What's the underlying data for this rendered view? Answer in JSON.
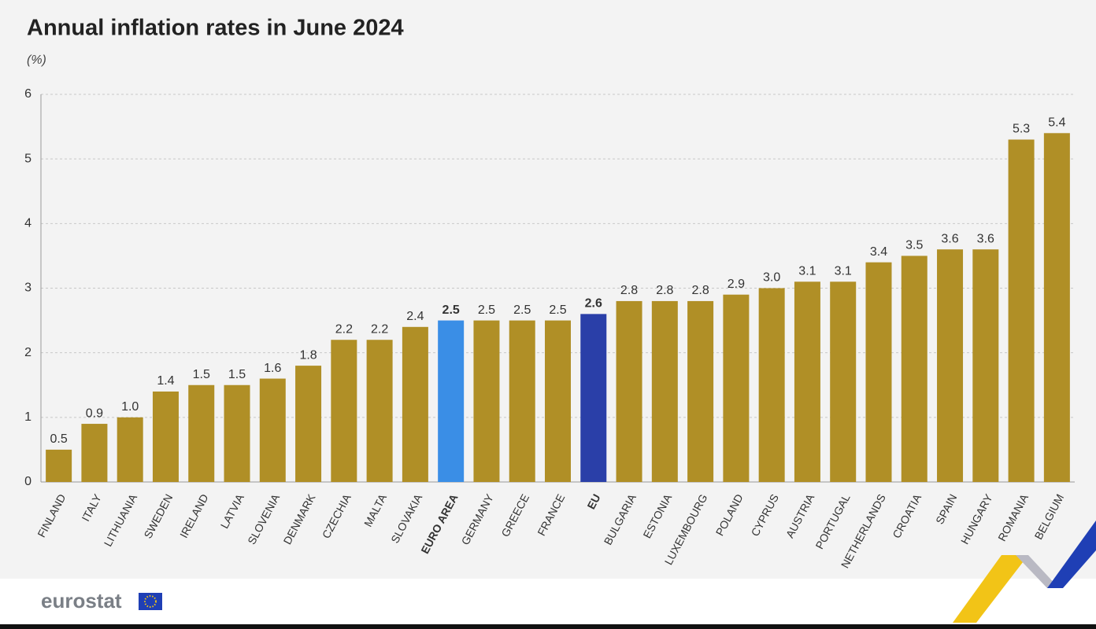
{
  "chart_data": {
    "type": "bar",
    "title": "Annual inflation rates in June 2024",
    "subtitle": "(%)",
    "categories": [
      "FINLAND",
      "ITALY",
      "LITHUANIA",
      "SWEDEN",
      "IRELAND",
      "LATVIA",
      "SLOVENIA",
      "DENMARK",
      "CZECHIA",
      "MALTA",
      "SLOVAKIA",
      "EURO AREA",
      "GERMANY",
      "GREECE",
      "FRANCE",
      "EU",
      "BULGARIA",
      "ESTONIA",
      "LUXEMBOURG",
      "POLAND",
      "CYPRUS",
      "AUSTRIA",
      "PORTUGAL",
      "NETHERLANDS",
      "CROATIA",
      "SPAIN",
      "HUNGARY",
      "ROMANIA",
      "BELGIUM"
    ],
    "values": [
      0.5,
      0.9,
      1.0,
      1.4,
      1.5,
      1.5,
      1.6,
      1.8,
      2.2,
      2.2,
      2.4,
      2.5,
      2.5,
      2.5,
      2.5,
      2.6,
      2.8,
      2.8,
      2.8,
      2.9,
      3.0,
      3.1,
      3.1,
      3.4,
      3.5,
      3.6,
      3.6,
      5.3,
      5.4
    ],
    "value_labels": [
      "0.5",
      "0.9",
      "1.0",
      "1.4",
      "1.5",
      "1.5",
      "1.6",
      "1.8",
      "2.2",
      "2.2",
      "2.4",
      "2.5",
      "2.5",
      "2.5",
      "2.5",
      "2.6",
      "2.8",
      "2.8",
      "2.8",
      "2.9",
      "3.0",
      "3.1",
      "3.1",
      "3.4",
      "3.5",
      "3.6",
      "3.6",
      "5.3",
      "5.4"
    ],
    "color": "#b08f26",
    "colors": [
      "#b08f26",
      "#b08f26",
      "#b08f26",
      "#b08f26",
      "#b08f26",
      "#b08f26",
      "#b08f26",
      "#b08f26",
      "#b08f26",
      "#b08f26",
      "#b08f26",
      "#3a8ee6",
      "#b08f26",
      "#b08f26",
      "#b08f26",
      "#2a3fa8",
      "#b08f26",
      "#b08f26",
      "#b08f26",
      "#b08f26",
      "#b08f26",
      "#b08f26",
      "#b08f26",
      "#b08f26",
      "#b08f26",
      "#b08f26",
      "#b08f26",
      "#b08f26",
      "#b08f26"
    ],
    "ylim": [
      0,
      6
    ],
    "yticks": [
      0,
      1,
      2,
      3,
      4,
      5,
      6
    ],
    "grid": true,
    "source": "eurostat"
  }
}
